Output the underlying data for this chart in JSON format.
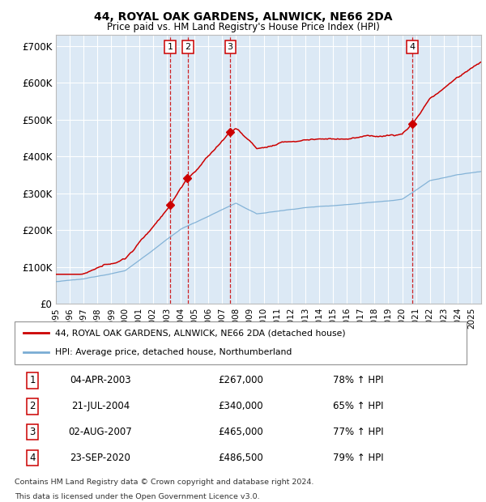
{
  "title1": "44, ROYAL OAK GARDENS, ALNWICK, NE66 2DA",
  "title2": "Price paid vs. HM Land Registry's House Price Index (HPI)",
  "ytick_values": [
    0,
    100000,
    200000,
    300000,
    400000,
    500000,
    600000,
    700000
  ],
  "ylim": [
    0,
    730000
  ],
  "xlim_start": 1995.0,
  "xlim_end": 2025.7,
  "plot_bg_color": "#dce9f5",
  "red_color": "#cc0000",
  "blue_color": "#7aadd4",
  "legend_label_red": "44, ROYAL OAK GARDENS, ALNWICK, NE66 2DA (detached house)",
  "legend_label_blue": "HPI: Average price, detached house, Northumberland",
  "sale_labels": [
    "1",
    "2",
    "3",
    "4"
  ],
  "sale_dates_decimal": [
    2003.25,
    2004.54,
    2007.58,
    2020.72
  ],
  "sale_prices": [
    267000,
    340000,
    465000,
    486500
  ],
  "sale_dates_str": [
    "04-APR-2003",
    "21-JUL-2004",
    "02-AUG-2007",
    "23-SEP-2020"
  ],
  "sale_pcts": [
    "78%",
    "65%",
    "77%",
    "79%"
  ],
  "footer1": "Contains HM Land Registry data © Crown copyright and database right 2024.",
  "footer2": "This data is licensed under the Open Government Licence v3.0.",
  "xtick_years": [
    1995,
    1996,
    1997,
    1998,
    1999,
    2000,
    2001,
    2002,
    2003,
    2004,
    2005,
    2006,
    2007,
    2008,
    2009,
    2010,
    2011,
    2012,
    2013,
    2014,
    2015,
    2016,
    2017,
    2018,
    2019,
    2020,
    2021,
    2022,
    2023,
    2024,
    2025
  ]
}
